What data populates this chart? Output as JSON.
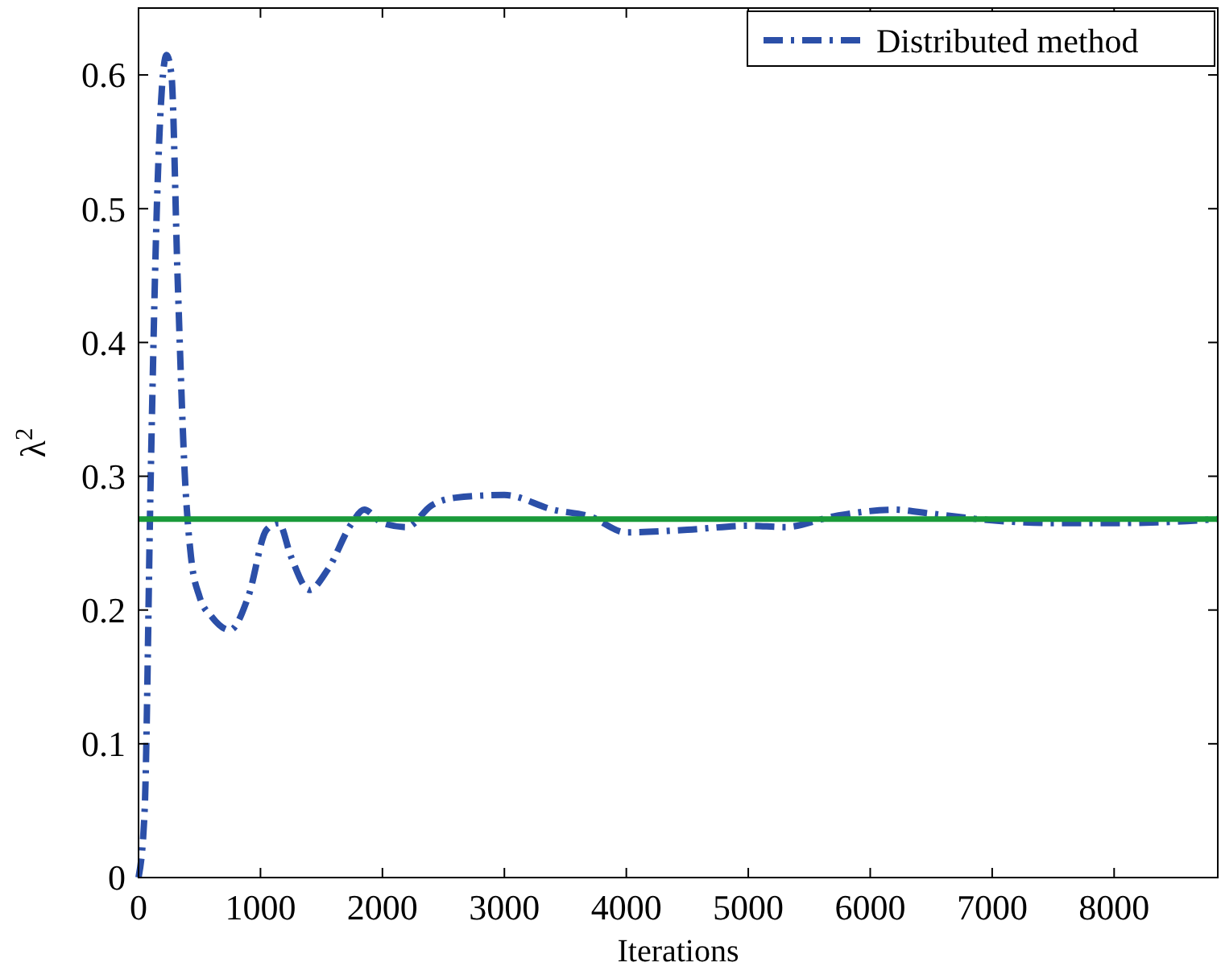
{
  "chart_data": {
    "type": "line",
    "xlabel": "Iterations",
    "ylabel": "λ$^{2}$",
    "xlim": [
      0,
      8850
    ],
    "ylim": [
      0,
      0.65
    ],
    "xticks": [
      0,
      1000,
      2000,
      3000,
      4000,
      5000,
      6000,
      7000,
      8000
    ],
    "yticks": [
      0,
      0.1,
      0.2,
      0.3,
      0.4,
      0.5,
      0.6
    ],
    "grid": false,
    "legend": "top right",
    "series": [
      {
        "name": "Distributed method",
        "color": "#2b4fa8",
        "line_style": "dashdot",
        "x": [
          0,
          50,
          100,
          150,
          200,
          230,
          270,
          320,
          380,
          430,
          500,
          600,
          750,
          900,
          1050,
          1150,
          1250,
          1400,
          1550,
          1750,
          1850,
          2000,
          2200,
          2400,
          2600,
          3000,
          3400,
          3700,
          4000,
          4500,
          5000,
          5300,
          5700,
          6200,
          6500,
          7000,
          7500,
          8000,
          8500,
          8850
        ],
        "values": [
          0,
          0.05,
          0.3,
          0.5,
          0.6,
          0.615,
          0.6,
          0.45,
          0.3,
          0.24,
          0.21,
          0.195,
          0.185,
          0.21,
          0.26,
          0.265,
          0.24,
          0.215,
          0.23,
          0.265,
          0.275,
          0.265,
          0.262,
          0.278,
          0.284,
          0.286,
          0.275,
          0.27,
          0.258,
          0.26,
          0.263,
          0.262,
          0.27,
          0.275,
          0.272,
          0.267,
          0.265,
          0.265,
          0.266,
          0.268
        ]
      },
      {
        "color": "#1a9a3a",
        "line_style": "solid",
        "x": [
          0,
          8850
        ],
        "values": [
          0.268,
          0.268
        ]
      }
    ]
  }
}
